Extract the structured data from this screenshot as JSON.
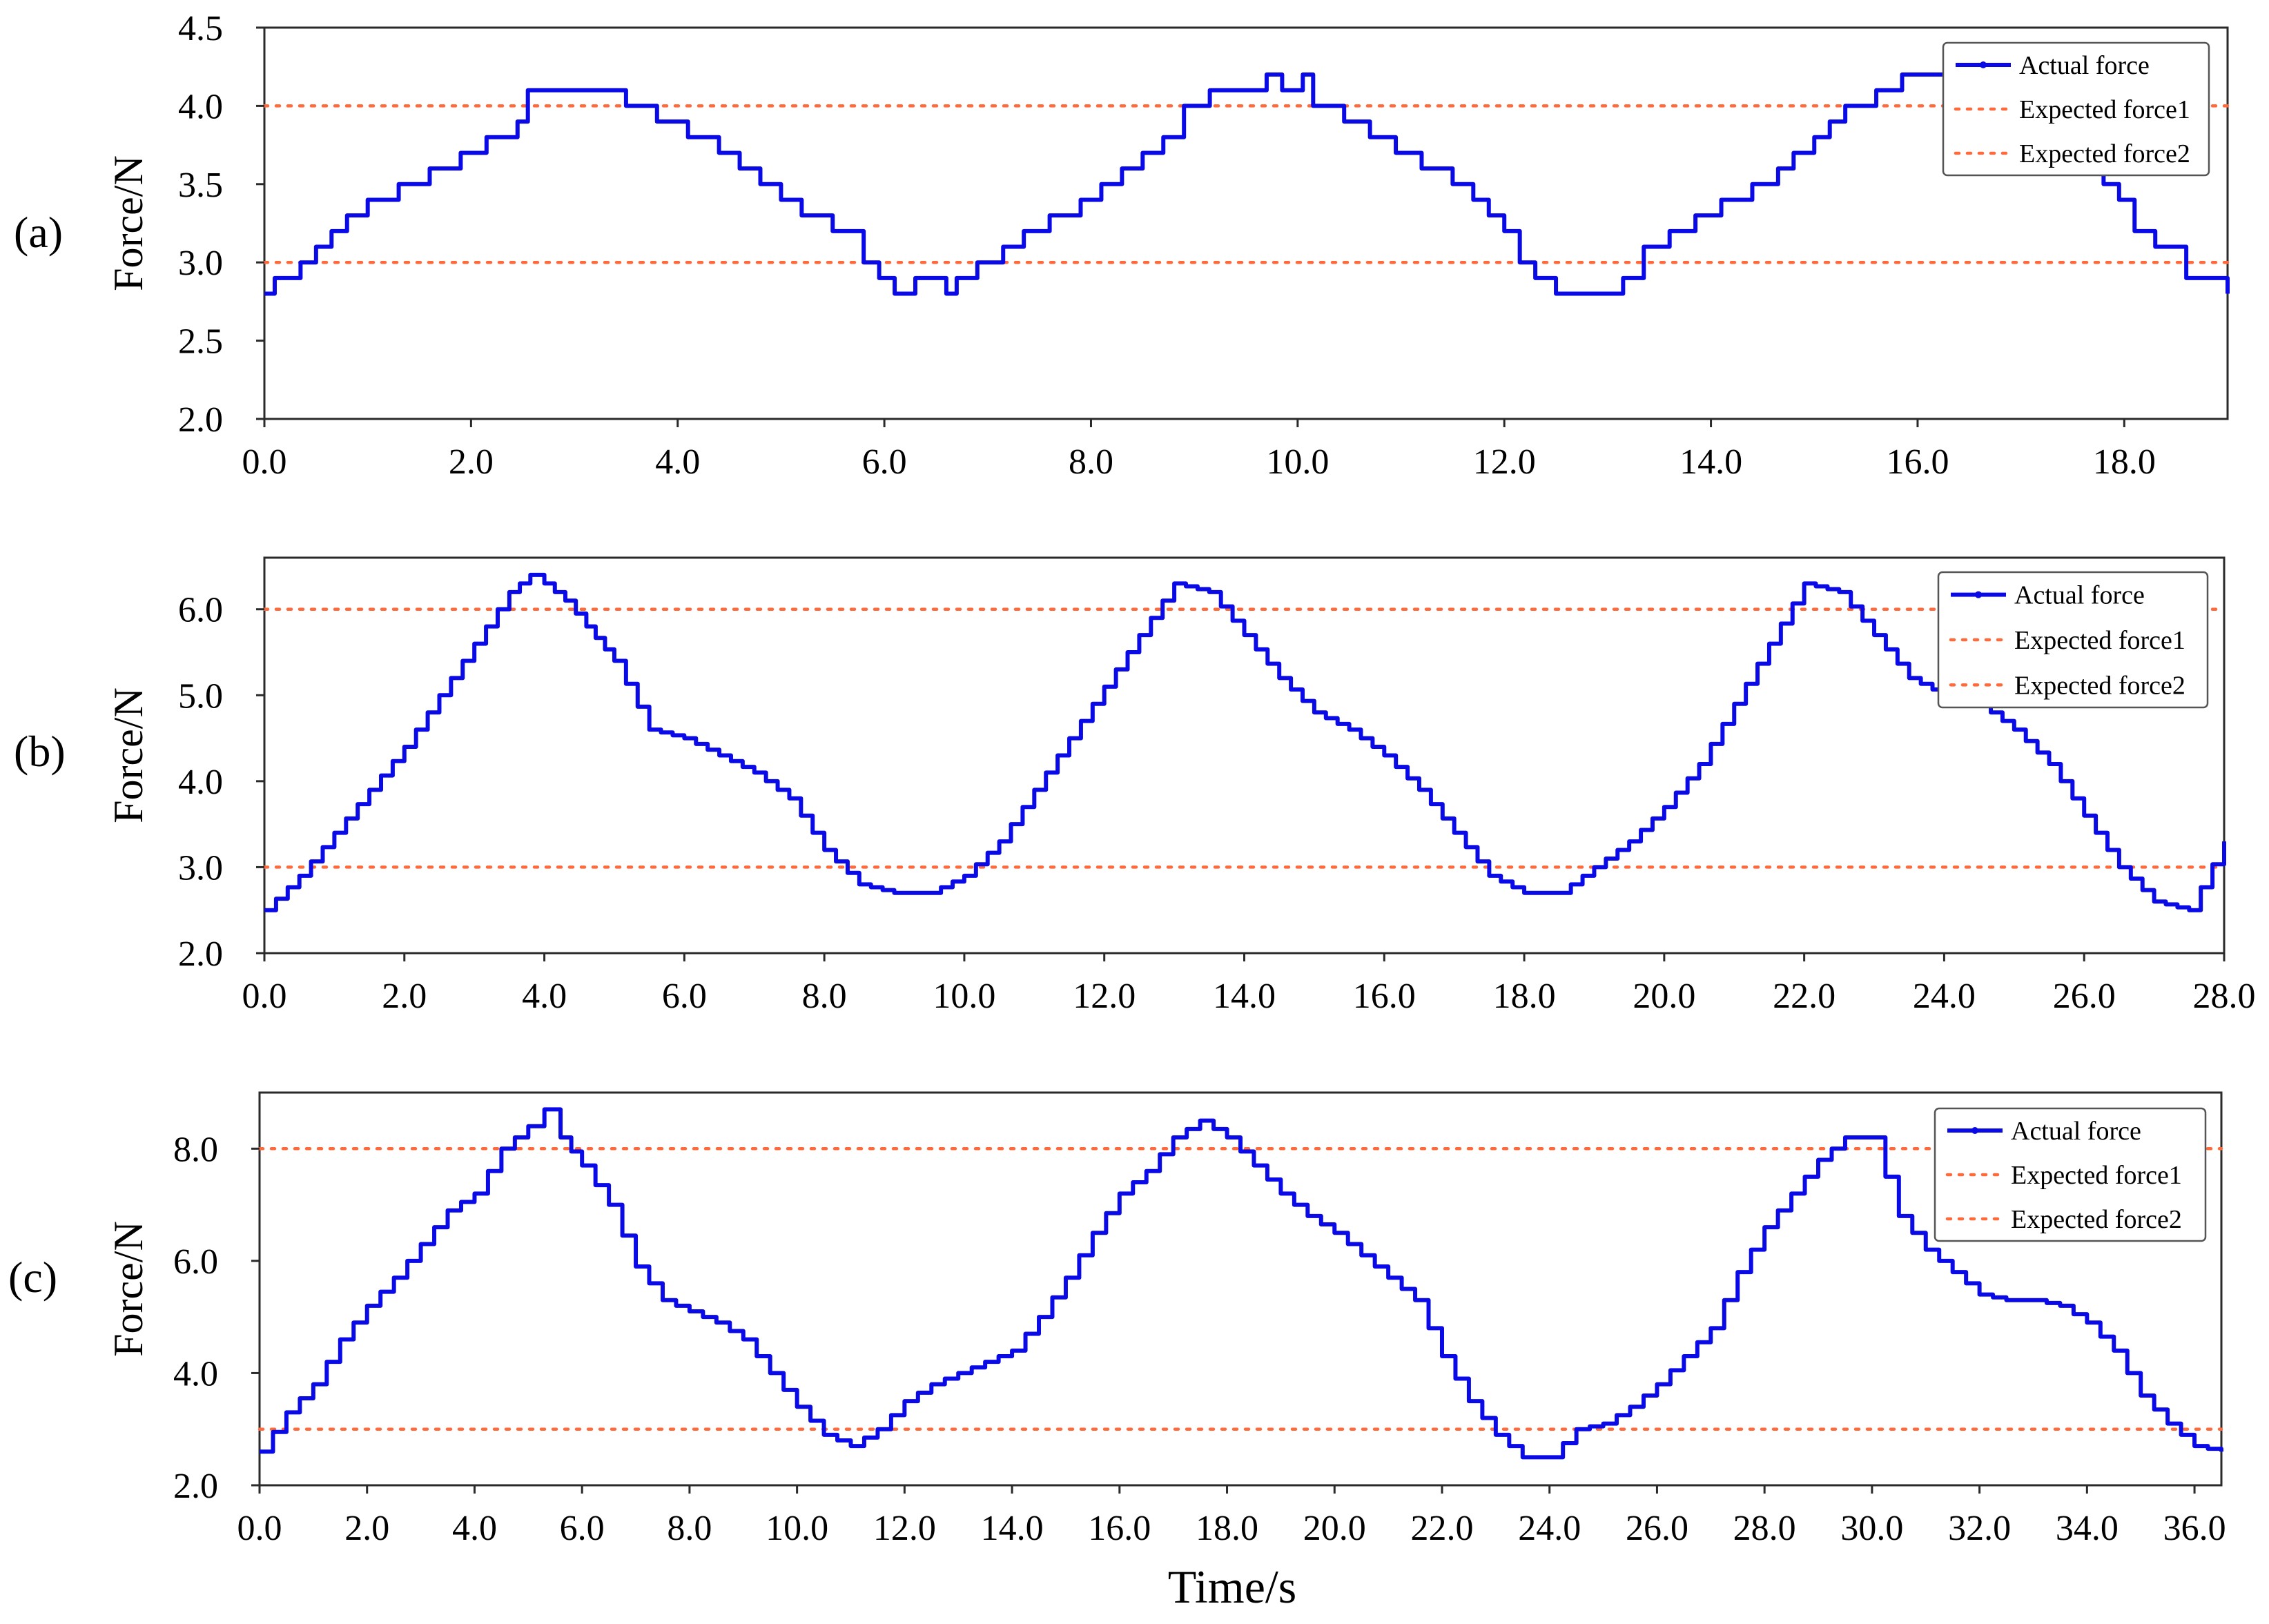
{
  "figure": {
    "xlabel": "Time/s",
    "colors": {
      "actual": "#0a0ae6",
      "expected": "#ff6a3d",
      "axes": "#2a2a2a"
    }
  },
  "chart_data": [
    {
      "panel_label": "(a)",
      "type": "line",
      "ylabel": "Force/N",
      "xlabel": "",
      "xlim": [
        0,
        19
      ],
      "ylim": [
        2.0,
        4.5
      ],
      "x_ticks": [
        0.0,
        2.0,
        4.0,
        6.0,
        8.0,
        10.0,
        12.0,
        14.0,
        16.0,
        18.0
      ],
      "x_tick_labels": [
        "0.0",
        "2.0",
        "4.0",
        "6.0",
        "8.0",
        "10.0",
        "12.0",
        "14.0",
        "16.0",
        "18.0"
      ],
      "y_ticks": [
        2.0,
        2.5,
        3.0,
        3.5,
        4.0,
        4.5
      ],
      "y_tick_labels": [
        "2.0",
        "2.5",
        "3.0",
        "3.5",
        "4.0",
        "4.5"
      ],
      "legend": {
        "position": "top-right",
        "entries": [
          "Actual force",
          "Expected force1",
          "Expected force2"
        ]
      },
      "series": [
        {
          "name": "Actual force",
          "style": "step",
          "x": [
            0.0,
            0.1,
            0.35,
            0.5,
            0.65,
            0.8,
            1.0,
            1.3,
            1.6,
            1.9,
            2.15,
            2.45,
            2.55,
            3.5,
            3.8,
            4.1,
            4.4,
            4.6,
            4.8,
            5.0,
            5.2,
            5.5,
            5.8,
            5.95,
            6.1,
            6.3,
            6.6,
            6.7,
            6.9,
            7.15,
            7.35,
            7.6,
            7.9,
            8.1,
            8.3,
            8.5,
            8.7,
            8.9,
            9.15,
            9.7,
            9.85,
            10.05,
            10.15,
            10.45,
            10.7,
            10.95,
            11.2,
            11.5,
            11.7,
            11.85,
            12.0,
            12.15,
            12.3,
            12.5,
            12.65,
            12.8,
            13.15,
            13.35,
            13.6,
            13.85,
            14.1,
            14.4,
            14.65,
            14.8,
            15.0,
            15.15,
            15.3,
            15.6,
            15.85,
            16.5,
            16.75,
            17.05,
            17.35,
            17.6,
            17.8,
            17.95,
            18.1,
            18.3,
            18.6,
            19.0
          ],
          "y": [
            2.8,
            2.9,
            3.0,
            3.1,
            3.2,
            3.3,
            3.4,
            3.5,
            3.6,
            3.7,
            3.8,
            3.9,
            4.1,
            4.0,
            3.9,
            3.8,
            3.7,
            3.6,
            3.5,
            3.4,
            3.3,
            3.2,
            3.0,
            2.9,
            2.8,
            2.9,
            2.8,
            2.9,
            3.0,
            3.1,
            3.2,
            3.3,
            3.4,
            3.5,
            3.6,
            3.7,
            3.8,
            4.0,
            4.1,
            4.2,
            4.1,
            4.2,
            4.0,
            3.9,
            3.8,
            3.7,
            3.6,
            3.5,
            3.4,
            3.3,
            3.2,
            3.0,
            2.9,
            2.8,
            2.8,
            2.8,
            2.9,
            3.1,
            3.2,
            3.3,
            3.4,
            3.5,
            3.6,
            3.7,
            3.8,
            3.9,
            4.0,
            4.1,
            4.2,
            4.1,
            4.0,
            3.8,
            3.7,
            3.6,
            3.5,
            3.4,
            3.2,
            3.1,
            2.9,
            2.8
          ]
        },
        {
          "name": "Expected force1",
          "style": "dotted",
          "y": 4.0
        },
        {
          "name": "Expected force2",
          "style": "dotted",
          "y": 3.0
        }
      ]
    },
    {
      "panel_label": "(b)",
      "type": "line",
      "ylabel": "Force/N",
      "xlabel": "",
      "xlim": [
        0,
        28
      ],
      "ylim": [
        2.0,
        6.6
      ],
      "x_ticks": [
        0,
        2,
        4,
        6,
        8,
        10,
        12,
        14,
        16,
        18,
        20,
        22,
        24,
        26,
        28
      ],
      "x_tick_labels": [
        "0.0",
        "2.0",
        "4.0",
        "6.0",
        "8.0",
        "10.0",
        "12.0",
        "14.0",
        "16.0",
        "18.0",
        "20.0",
        "22.0",
        "24.0",
        "26.0",
        "28.0"
      ],
      "y_ticks": [
        2.0,
        3.0,
        4.0,
        5.0,
        6.0
      ],
      "y_tick_labels": [
        "2.0",
        "3.0",
        "4.0",
        "5.0",
        "6.0"
      ],
      "legend": {
        "position": "top-right",
        "entries": [
          "Actual force",
          "Expected force1",
          "Expected force2"
        ]
      },
      "series": [
        {
          "name": "Actual force",
          "style": "fine-step",
          "x": [
            0.0,
            0.5,
            1.0,
            1.5,
            2.0,
            2.5,
            3.0,
            3.5,
            3.8,
            4.0,
            4.3,
            4.6,
            5.0,
            5.5,
            6.0,
            6.5,
            7.0,
            7.5,
            8.0,
            8.5,
            9.0,
            9.5,
            10.0,
            10.5,
            11.0,
            11.5,
            12.0,
            12.5,
            13.0,
            13.5,
            14.0,
            14.5,
            15.0,
            15.5,
            16.0,
            16.5,
            17.0,
            17.5,
            18.0,
            18.5,
            19.0,
            19.5,
            20.0,
            20.5,
            21.0,
            21.5,
            22.0,
            22.5,
            23.0,
            23.5,
            24.0,
            24.5,
            25.0,
            25.5,
            26.0,
            26.5,
            27.0,
            27.5,
            28.0
          ],
          "y": [
            2.5,
            2.9,
            3.4,
            3.9,
            4.4,
            5.0,
            5.6,
            6.2,
            6.4,
            6.3,
            6.1,
            5.8,
            5.4,
            4.6,
            4.5,
            4.3,
            4.1,
            3.8,
            3.2,
            2.8,
            2.7,
            2.7,
            2.9,
            3.3,
            3.9,
            4.5,
            5.1,
            5.7,
            6.3,
            6.2,
            5.7,
            5.2,
            4.8,
            4.6,
            4.3,
            3.9,
            3.4,
            2.9,
            2.7,
            2.7,
            3.0,
            3.3,
            3.7,
            4.2,
            4.9,
            5.6,
            6.3,
            6.2,
            5.7,
            5.2,
            5.0,
            4.9,
            4.6,
            4.2,
            3.6,
            3.0,
            2.6,
            2.5,
            3.3
          ]
        },
        {
          "name": "Expected force1",
          "style": "dotted",
          "y": 6.0
        },
        {
          "name": "Expected force2",
          "style": "dotted",
          "y": 3.0
        }
      ]
    },
    {
      "panel_label": "(c)",
      "type": "line",
      "ylabel": "Force/N",
      "xlabel": "Time/s",
      "xlim": [
        0,
        36.5
      ],
      "ylim": [
        2.0,
        9.0
      ],
      "x_ticks": [
        0,
        2,
        4,
        6,
        8,
        10,
        12,
        14,
        16,
        18,
        20,
        22,
        24,
        26,
        28,
        30,
        32,
        34,
        36
      ],
      "x_tick_labels": [
        "0.0",
        "2.0",
        "4.0",
        "6.0",
        "8.0",
        "10.0",
        "12.0",
        "14.0",
        "16.0",
        "18.0",
        "20.0",
        "22.0",
        "24.0",
        "26.0",
        "28.0",
        "30.0",
        "32.0",
        "34.0",
        "36.0"
      ],
      "y_ticks": [
        2.0,
        4.0,
        6.0,
        8.0
      ],
      "y_tick_labels": [
        "2.0",
        "4.0",
        "6.0",
        "8.0"
      ],
      "legend": {
        "position": "top-right",
        "entries": [
          "Actual force",
          "Expected force1",
          "Expected force2"
        ]
      },
      "series": [
        {
          "name": "Actual force",
          "style": "fine-step",
          "x": [
            0.0,
            0.5,
            1.0,
            1.5,
            2.0,
            2.5,
            3.0,
            3.5,
            4.0,
            4.5,
            5.0,
            5.3,
            5.6,
            6.0,
            6.5,
            7.0,
            7.5,
            8.0,
            8.5,
            9.0,
            9.5,
            10.0,
            10.5,
            11.0,
            11.5,
            12.0,
            12.5,
            13.0,
            13.5,
            14.0,
            14.5,
            15.0,
            15.5,
            16.0,
            16.5,
            17.0,
            17.5,
            18.0,
            18.5,
            19.0,
            19.5,
            20.0,
            20.5,
            21.0,
            21.5,
            22.0,
            22.5,
            23.0,
            23.5,
            24.0,
            24.5,
            25.0,
            25.5,
            26.0,
            26.5,
            27.0,
            27.5,
            28.0,
            28.5,
            29.0,
            29.5,
            30.0,
            30.5,
            31.0,
            31.5,
            32.0,
            32.5,
            33.0,
            33.5,
            34.0,
            34.5,
            35.0,
            35.5,
            36.0,
            36.5
          ],
          "y": [
            2.6,
            3.3,
            3.8,
            4.6,
            5.2,
            5.7,
            6.3,
            6.9,
            7.2,
            8.0,
            8.4,
            8.7,
            8.2,
            7.7,
            7.0,
            5.9,
            5.3,
            5.1,
            4.9,
            4.6,
            4.0,
            3.4,
            2.9,
            2.7,
            3.0,
            3.5,
            3.8,
            4.0,
            4.2,
            4.4,
            5.0,
            5.7,
            6.5,
            7.2,
            7.6,
            8.2,
            8.5,
            8.2,
            7.7,
            7.2,
            6.8,
            6.5,
            6.1,
            5.7,
            5.3,
            4.3,
            3.5,
            2.9,
            2.5,
            2.5,
            3.0,
            3.1,
            3.4,
            3.8,
            4.3,
            4.8,
            5.8,
            6.6,
            7.2,
            7.8,
            8.2,
            8.2,
            6.8,
            6.2,
            5.8,
            5.4,
            5.3,
            5.3,
            5.2,
            4.9,
            4.4,
            3.6,
            3.1,
            2.7,
            2.6
          ]
        },
        {
          "name": "Expected force1",
          "style": "dotted",
          "y": 8.0
        },
        {
          "name": "Expected force2",
          "style": "dotted",
          "y": 3.0
        }
      ]
    }
  ]
}
